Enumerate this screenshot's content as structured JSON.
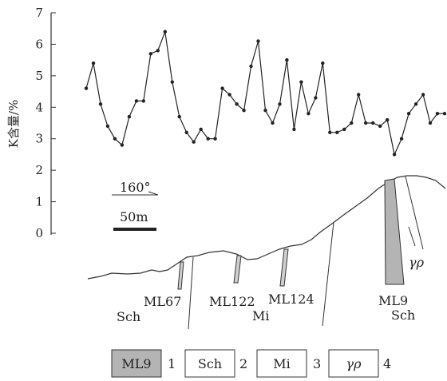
{
  "chart_data": {
    "type": "line",
    "ylabel": "K含量/%",
    "ylim": [
      0,
      7
    ],
    "yticks": [
      "0",
      "1",
      "2",
      "3",
      "4",
      "5",
      "6",
      "7"
    ],
    "values": [
      4.6,
      5.4,
      4.1,
      3.4,
      3.0,
      2.8,
      3.7,
      4.2,
      4.2,
      5.7,
      5.8,
      6.4,
      4.8,
      3.7,
      3.2,
      2.9,
      3.3,
      3.0,
      3.0,
      4.6,
      4.4,
      4.1,
      3.9,
      5.3,
      6.1,
      3.9,
      3.5,
      4.1,
      5.5,
      3.3,
      4.8,
      3.8,
      4.3,
      5.4,
      3.2,
      3.2,
      3.3,
      3.5,
      4.4,
      3.5,
      3.5,
      3.4,
      3.6,
      2.5,
      3.0,
      3.8,
      4.1,
      4.4,
      3.5,
      3.8,
      3.8
    ]
  },
  "scale": {
    "bearing": "160°",
    "distance": "50m"
  },
  "section_labels": {
    "ml67": "ML67",
    "ml122": "ML122",
    "ml124": "ML124",
    "mi": "Mi",
    "ml9": "ML9",
    "sch_left": "Sch",
    "sch_right": "Sch",
    "gamma_rho": "γρ"
  },
  "legend": [
    {
      "symbol": "ML9",
      "number": "1",
      "fill": "#b4b4b4"
    },
    {
      "symbol": "Sch",
      "number": "2",
      "fill": "#ffffff"
    },
    {
      "symbol": "Mi",
      "number": "3",
      "fill": "#ffffff"
    },
    {
      "symbol": "γρ",
      "number": "4",
      "fill": "#ffffff"
    }
  ]
}
